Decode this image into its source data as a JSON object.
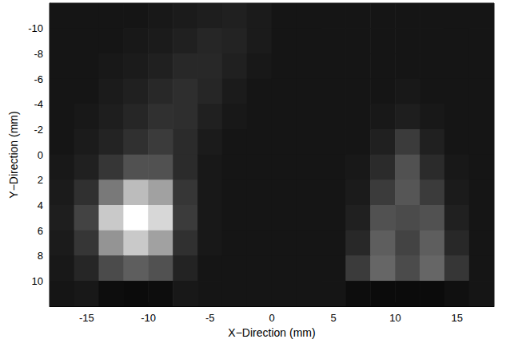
{
  "chart_data": {
    "type": "heatmap",
    "x_label": "X−Direction (mm)",
    "y_label": "Y−Direction (mm)",
    "xlim": [
      -18,
      18
    ],
    "ylim": [
      12,
      -12
    ],
    "xticks": [
      -15,
      -10,
      -5,
      0,
      5,
      10,
      15
    ],
    "yticks": [
      -10,
      -8,
      -6,
      -4,
      -2,
      0,
      2,
      4,
      6,
      8,
      10
    ],
    "grid": false,
    "heatmap": {
      "x": [
        -17,
        -15,
        -13,
        -11,
        -9,
        -7,
        -5,
        -3,
        -1,
        1,
        3,
        5,
        7,
        9,
        11,
        13,
        15,
        17
      ],
      "y": [
        -11,
        -9,
        -7,
        -5,
        -3,
        -1,
        1,
        3,
        5,
        7,
        9,
        11
      ],
      "z": [
        [
          8,
          8,
          8,
          8,
          9,
          10,
          11,
          12,
          10,
          8,
          8,
          8,
          8,
          8,
          8,
          8,
          8,
          8
        ],
        [
          8,
          8,
          8,
          9,
          10,
          12,
          14,
          13,
          10,
          8,
          8,
          8,
          8,
          8,
          8,
          8,
          8,
          8
        ],
        [
          8,
          8,
          9,
          10,
          12,
          15,
          15,
          12,
          9,
          8,
          8,
          8,
          8,
          8,
          8,
          8,
          8,
          8
        ],
        [
          8,
          8,
          10,
          12,
          15,
          17,
          14,
          10,
          8,
          8,
          8,
          8,
          8,
          8,
          9,
          8,
          8,
          8
        ],
        [
          8,
          9,
          11,
          14,
          18,
          17,
          12,
          9,
          8,
          8,
          8,
          8,
          8,
          9,
          11,
          9,
          8,
          8
        ],
        [
          8,
          10,
          13,
          18,
          22,
          16,
          10,
          8,
          8,
          8,
          8,
          8,
          8,
          12,
          22,
          12,
          8,
          8
        ],
        [
          9,
          12,
          20,
          30,
          30,
          16,
          9,
          8,
          8,
          8,
          8,
          8,
          9,
          16,
          30,
          16,
          9,
          8
        ],
        [
          10,
          18,
          45,
          70,
          60,
          20,
          9,
          8,
          8,
          8,
          8,
          8,
          10,
          22,
          32,
          22,
          10,
          8
        ],
        [
          11,
          25,
          75,
          95,
          80,
          22,
          9,
          8,
          8,
          8,
          8,
          8,
          12,
          30,
          28,
          30,
          12,
          8
        ],
        [
          10,
          20,
          55,
          75,
          60,
          18,
          9,
          8,
          8,
          8,
          8,
          8,
          15,
          35,
          25,
          35,
          15,
          8
        ],
        [
          9,
          14,
          28,
          35,
          30,
          13,
          8,
          8,
          8,
          8,
          8,
          8,
          22,
          38,
          28,
          38,
          20,
          8
        ],
        [
          8,
          9,
          5,
          4,
          5,
          9,
          8,
          8,
          8,
          8,
          8,
          8,
          5,
          4,
          4,
          4,
          6,
          8
        ]
      ]
    }
  }
}
